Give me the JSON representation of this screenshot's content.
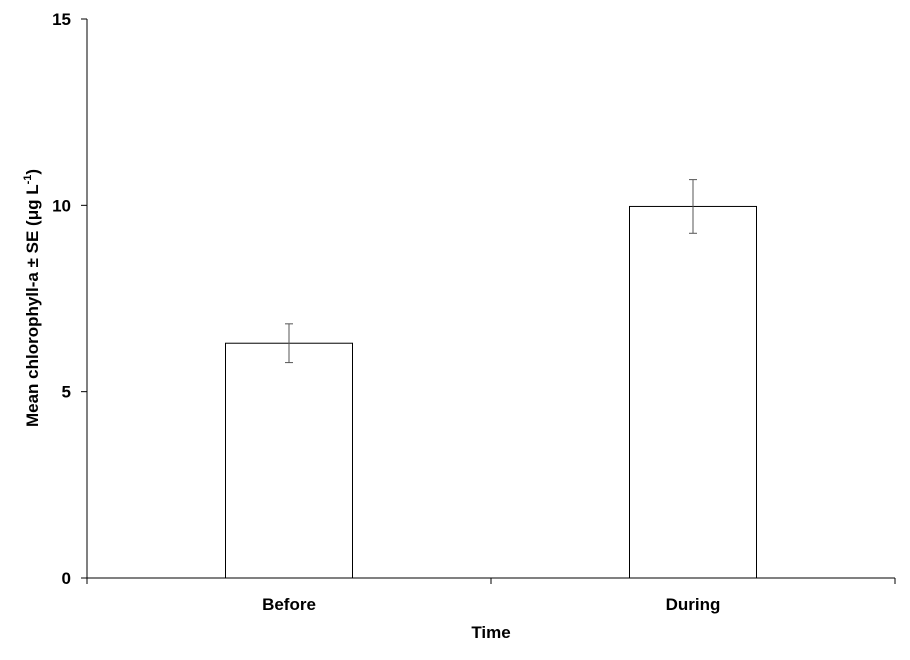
{
  "chart_data": {
    "type": "bar",
    "categories": [
      "Before",
      "During"
    ],
    "values": [
      6.3,
      9.97
    ],
    "errors": [
      0.52,
      0.72
    ],
    "xlabel": "Time",
    "ylabel_main": "Mean chlorophyll-a ± SE (μg L",
    "ylabel_sup": "-1",
    "ylabel_end": ")",
    "ylim": [
      0,
      15
    ],
    "yticks": [
      0,
      5,
      10,
      15
    ],
    "grid": false,
    "legend": "none",
    "bar_fill": "#ffffff",
    "bar_stroke": "#000000",
    "error_color": "#555555"
  }
}
